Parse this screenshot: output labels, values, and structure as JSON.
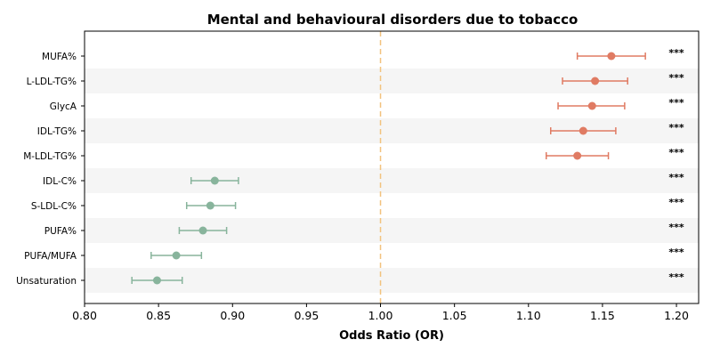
{
  "chart_data": {
    "type": "forest",
    "title": "Mental and behavioural disorders due to tobacco",
    "xlabel": "Odds Ratio (OR)",
    "xlim": [
      0.8,
      1.215
    ],
    "xticks": [
      "0.80",
      "0.85",
      "0.90",
      "0.95",
      "1.00",
      "1.05",
      "1.10",
      "1.15",
      "1.20"
    ],
    "reference_line": 1.0,
    "colors": {
      "positive": "#e07b63",
      "negative": "#88b49c",
      "reference": "#f2c27e",
      "stripe": "#f5f5f5"
    },
    "rows": [
      {
        "label": "MUFA%",
        "or": 1.156,
        "lo": 1.133,
        "hi": 1.179,
        "sig": "***"
      },
      {
        "label": "L-LDL-TG%",
        "or": 1.145,
        "lo": 1.123,
        "hi": 1.167,
        "sig": "***"
      },
      {
        "label": "GlycA",
        "or": 1.143,
        "lo": 1.12,
        "hi": 1.165,
        "sig": "***"
      },
      {
        "label": "IDL-TG%",
        "or": 1.137,
        "lo": 1.115,
        "hi": 1.159,
        "sig": "***"
      },
      {
        "label": "M-LDL-TG%",
        "or": 1.133,
        "lo": 1.112,
        "hi": 1.154,
        "sig": "***"
      },
      {
        "label": "IDL-C%",
        "or": 0.888,
        "lo": 0.872,
        "hi": 0.904,
        "sig": "***"
      },
      {
        "label": "S-LDL-C%",
        "or": 0.885,
        "lo": 0.869,
        "hi": 0.902,
        "sig": "***"
      },
      {
        "label": "PUFA%",
        "or": 0.88,
        "lo": 0.864,
        "hi": 0.896,
        "sig": "***"
      },
      {
        "label": "PUFA/MUFA",
        "or": 0.862,
        "lo": 0.845,
        "hi": 0.879,
        "sig": "***"
      },
      {
        "label": "Unsaturation",
        "or": 0.849,
        "lo": 0.832,
        "hi": 0.866,
        "sig": "***"
      }
    ]
  }
}
